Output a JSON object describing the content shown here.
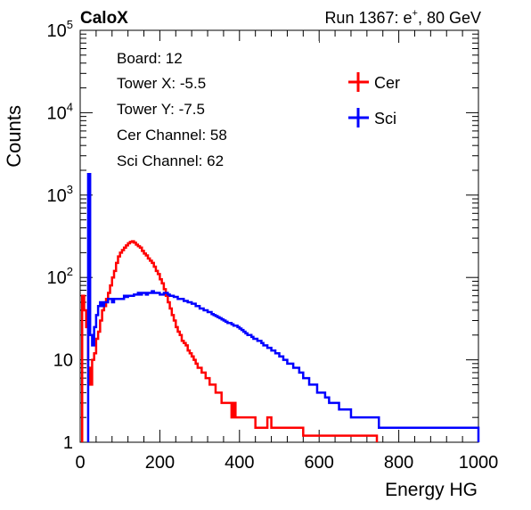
{
  "header": {
    "left_label": "CaloX",
    "run_label": "Run 1367: e",
    "run_superscript": "+",
    "run_suffix": ", 80 GeV"
  },
  "info_box": {
    "lines": [
      "Board: 12",
      "Tower X: -5.5",
      "Tower Y: -7.5",
      "Cer Channel: 58",
      "Sci Channel: 62"
    ]
  },
  "chart_data": {
    "type": "line",
    "title": "",
    "xlabel": "Energy HG",
    "ylabel": "Counts",
    "xlim": [
      0,
      1000
    ],
    "ylim": [
      1,
      100000
    ],
    "y_scale": "log",
    "x_ticks": [
      0,
      200,
      400,
      600,
      800,
      1000
    ],
    "y_ticks": [
      {
        "value": 1,
        "base": "1",
        "exp": ""
      },
      {
        "value": 10,
        "base": "10",
        "exp": ""
      },
      {
        "value": 100,
        "base": "10",
        "exp": "2"
      },
      {
        "value": 1000,
        "base": "10",
        "exp": "3"
      },
      {
        "value": 10000,
        "base": "10",
        "exp": "4"
      },
      {
        "value": 100000,
        "base": "10",
        "exp": "5"
      }
    ],
    "grid": false,
    "legend_position": "top-right",
    "series": [
      {
        "name": "Cer",
        "color": "#ff0000",
        "points": [
          [
            5,
            60
          ],
          [
            10,
            40
          ],
          [
            15,
            25
          ],
          [
            20,
            8
          ],
          [
            25,
            5
          ],
          [
            30,
            10
          ],
          [
            35,
            12
          ],
          [
            40,
            18
          ],
          [
            45,
            22
          ],
          [
            50,
            30
          ],
          [
            55,
            40
          ],
          [
            60,
            45
          ],
          [
            65,
            55
          ],
          [
            70,
            65
          ],
          [
            75,
            80
          ],
          [
            80,
            100
          ],
          [
            85,
            120
          ],
          [
            90,
            150
          ],
          [
            95,
            180
          ],
          [
            100,
            200
          ],
          [
            105,
            215
          ],
          [
            110,
            230
          ],
          [
            115,
            245
          ],
          [
            120,
            260
          ],
          [
            125,
            270
          ],
          [
            130,
            275
          ],
          [
            135,
            265
          ],
          [
            140,
            250
          ],
          [
            145,
            240
          ],
          [
            150,
            230
          ],
          [
            155,
            210
          ],
          [
            160,
            195
          ],
          [
            165,
            185
          ],
          [
            170,
            170
          ],
          [
            175,
            160
          ],
          [
            180,
            150
          ],
          [
            185,
            135
          ],
          [
            190,
            120
          ],
          [
            195,
            110
          ],
          [
            200,
            95
          ],
          [
            205,
            85
          ],
          [
            210,
            72
          ],
          [
            215,
            60
          ],
          [
            220,
            50
          ],
          [
            225,
            42
          ],
          [
            230,
            35
          ],
          [
            235,
            30
          ],
          [
            240,
            25
          ],
          [
            245,
            22
          ],
          [
            250,
            20
          ],
          [
            255,
            17
          ],
          [
            260,
            16
          ],
          [
            265,
            15
          ],
          [
            270,
            13
          ],
          [
            275,
            12
          ],
          [
            280,
            11
          ],
          [
            285,
            10
          ],
          [
            290,
            9
          ],
          [
            295,
            8
          ],
          [
            300,
            8
          ],
          [
            305,
            7
          ],
          [
            310,
            7
          ],
          [
            315,
            6
          ],
          [
            320,
            6
          ],
          [
            325,
            5
          ],
          [
            330,
            5
          ],
          [
            335,
            5
          ],
          [
            340,
            4
          ],
          [
            345,
            4
          ],
          [
            350,
            4
          ],
          [
            355,
            3
          ],
          [
            360,
            3
          ],
          [
            365,
            3
          ],
          [
            370,
            3
          ],
          [
            375,
            3
          ],
          [
            380,
            2
          ],
          [
            385,
            3
          ],
          [
            390,
            2
          ],
          [
            395,
            2
          ],
          [
            400,
            2
          ],
          [
            410,
            2
          ],
          [
            420,
            2
          ],
          [
            430,
            2
          ],
          [
            440,
            1.5
          ],
          [
            450,
            1.5
          ],
          [
            460,
            1.5
          ],
          [
            470,
            2
          ],
          [
            480,
            1.5
          ],
          [
            490,
            1.5
          ],
          [
            500,
            1.5
          ],
          [
            520,
            1.5
          ],
          [
            540,
            1.5
          ],
          [
            560,
            1.2
          ],
          [
            580,
            1.2
          ],
          [
            600,
            1.2
          ],
          [
            650,
            1.2
          ],
          [
            700,
            1.2
          ],
          [
            740,
            1.2
          ]
        ]
      },
      {
        "name": "Sci",
        "color": "#0000ff",
        "points": [
          [
            20,
            1800
          ],
          [
            25,
            20
          ],
          [
            30,
            15
          ],
          [
            35,
            25
          ],
          [
            40,
            35
          ],
          [
            45,
            45
          ],
          [
            50,
            50
          ],
          [
            55,
            45
          ],
          [
            60,
            50
          ],
          [
            65,
            50
          ],
          [
            70,
            55
          ],
          [
            75,
            55
          ],
          [
            80,
            50
          ],
          [
            85,
            55
          ],
          [
            90,
            55
          ],
          [
            95,
            55
          ],
          [
            100,
            55
          ],
          [
            105,
            55
          ],
          [
            110,
            60
          ],
          [
            115,
            58
          ],
          [
            120,
            60
          ],
          [
            125,
            60
          ],
          [
            130,
            60
          ],
          [
            135,
            62
          ],
          [
            140,
            62
          ],
          [
            145,
            65
          ],
          [
            150,
            62
          ],
          [
            155,
            65
          ],
          [
            160,
            65
          ],
          [
            165,
            62
          ],
          [
            170,
            65
          ],
          [
            175,
            65
          ],
          [
            180,
            68
          ],
          [
            185,
            65
          ],
          [
            190,
            65
          ],
          [
            195,
            65
          ],
          [
            200,
            62
          ],
          [
            205,
            62
          ],
          [
            210,
            65
          ],
          [
            215,
            65
          ],
          [
            220,
            62
          ],
          [
            225,
            60
          ],
          [
            230,
            60
          ],
          [
            235,
            58
          ],
          [
            240,
            58
          ],
          [
            245,
            55
          ],
          [
            250,
            55
          ],
          [
            255,
            55
          ],
          [
            260,
            52
          ],
          [
            265,
            52
          ],
          [
            270,
            50
          ],
          [
            275,
            50
          ],
          [
            280,
            48
          ],
          [
            285,
            48
          ],
          [
            290,
            45
          ],
          [
            295,
            45
          ],
          [
            300,
            42
          ],
          [
            305,
            42
          ],
          [
            310,
            40
          ],
          [
            315,
            40
          ],
          [
            320,
            38
          ],
          [
            325,
            38
          ],
          [
            330,
            36
          ],
          [
            335,
            35
          ],
          [
            340,
            34
          ],
          [
            345,
            33
          ],
          [
            350,
            32
          ],
          [
            355,
            31
          ],
          [
            360,
            30
          ],
          [
            365,
            29
          ],
          [
            370,
            28
          ],
          [
            375,
            28
          ],
          [
            380,
            27
          ],
          [
            385,
            26
          ],
          [
            390,
            26
          ],
          [
            395,
            25
          ],
          [
            400,
            24
          ],
          [
            405,
            23
          ],
          [
            410,
            22
          ],
          [
            415,
            21
          ],
          [
            420,
            20
          ],
          [
            425,
            20
          ],
          [
            430,
            19
          ],
          [
            435,
            18
          ],
          [
            440,
            18
          ],
          [
            445,
            17
          ],
          [
            450,
            17
          ],
          [
            455,
            16
          ],
          [
            460,
            15
          ],
          [
            465,
            15
          ],
          [
            470,
            14
          ],
          [
            475,
            14
          ],
          [
            480,
            13
          ],
          [
            485,
            13
          ],
          [
            490,
            12
          ],
          [
            495,
            12
          ],
          [
            500,
            11
          ],
          [
            505,
            11
          ],
          [
            510,
            10
          ],
          [
            515,
            10
          ],
          [
            520,
            9
          ],
          [
            525,
            9
          ],
          [
            530,
            9
          ],
          [
            535,
            8
          ],
          [
            540,
            8
          ],
          [
            545,
            8
          ],
          [
            550,
            7
          ],
          [
            555,
            7
          ],
          [
            560,
            6
          ],
          [
            565,
            6
          ],
          [
            570,
            6
          ],
          [
            575,
            5
          ],
          [
            580,
            5
          ],
          [
            585,
            5
          ],
          [
            590,
            5
          ],
          [
            595,
            4
          ],
          [
            600,
            4
          ],
          [
            605,
            4
          ],
          [
            610,
            4
          ],
          [
            615,
            3.5
          ],
          [
            620,
            3.5
          ],
          [
            625,
            3
          ],
          [
            630,
            3
          ],
          [
            640,
            3
          ],
          [
            650,
            2.5
          ],
          [
            660,
            2.5
          ],
          [
            670,
            2.5
          ],
          [
            680,
            2
          ],
          [
            690,
            2
          ],
          [
            700,
            2
          ],
          [
            710,
            2
          ],
          [
            720,
            2
          ],
          [
            730,
            2
          ],
          [
            740,
            2
          ],
          [
            750,
            1.5
          ],
          [
            760,
            1.5
          ],
          [
            770,
            1.5
          ],
          [
            780,
            1.5
          ],
          [
            790,
            1.5
          ],
          [
            800,
            1.5
          ],
          [
            820,
            1.5
          ],
          [
            840,
            1.5
          ],
          [
            860,
            1.5
          ],
          [
            880,
            1.5
          ],
          [
            900,
            1.5
          ],
          [
            920,
            1.5
          ],
          [
            940,
            1.5
          ],
          [
            960,
            1.5
          ],
          [
            980,
            1.5
          ],
          [
            995,
            1.5
          ]
        ]
      }
    ]
  }
}
